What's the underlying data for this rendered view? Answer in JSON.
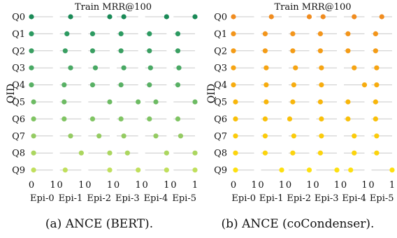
{
  "chart_data": [
    {
      "type": "scatter",
      "title": "Train MRR@100",
      "caption": "(a) ANCE (BERT).",
      "ylabel": "QID",
      "queries": [
        "Q0",
        "Q1",
        "Q2",
        "Q3",
        "Q4",
        "Q5",
        "Q6",
        "Q7",
        "Q8",
        "Q9"
      ],
      "epochs": [
        "Epi-0",
        "Epi-1",
        "Epi-2",
        "Epi-3",
        "Epi-4",
        "Epi-5"
      ],
      "xticks": [
        "0",
        "1"
      ],
      "xlim": [
        0,
        1
      ],
      "grid": true,
      "colors": [
        "#1a8a57",
        "#2c9a61",
        "#3a9f62",
        "#48a863",
        "#58b064",
        "#6dbb63",
        "#80c463",
        "#94cb62",
        "#abd65f",
        "#c0df5c"
      ],
      "values": [
        [
          0.0,
          0.5,
          1.0,
          0.33,
          1.0,
          1.0
        ],
        [
          0.0,
          0.33,
          0.2,
          0.2,
          0.2,
          0.2
        ],
        [
          0.0,
          0.25,
          0.2,
          0.2,
          0.2,
          0.2
        ],
        [
          0.0,
          0.5,
          0.33,
          0.33,
          0.25,
          0.25
        ],
        [
          0.0,
          0.2,
          0.2,
          0.2,
          0.2,
          0.2
        ],
        [
          0.1,
          0.2,
          1.0,
          1.0,
          0.5,
          1.0
        ],
        [
          0.1,
          0.2,
          0.2,
          0.2,
          0.2,
          0.2
        ],
        [
          0.1,
          0.5,
          0.5,
          0.33,
          0.5,
          0.33
        ],
        [
          0.1,
          1.0,
          1.0,
          0.5,
          1.0,
          1.0
        ],
        [
          0.1,
          0.25,
          1.0,
          1.0,
          1.0,
          1.0
        ]
      ]
    },
    {
      "type": "scatter",
      "title": "Train MRR@100",
      "caption": "(b) ANCE (coCondenser).",
      "ylabel": "QID",
      "queries": [
        "Q0",
        "Q1",
        "Q2",
        "Q3",
        "Q4",
        "Q5",
        "Q6",
        "Q7",
        "Q8",
        "Q9"
      ],
      "epochs": [
        "Epi-0",
        "Epi-1",
        "Epi-2",
        "Epi-3",
        "Epi-4",
        "Epi-5"
      ],
      "xticks": [
        "0",
        "1"
      ],
      "xlim": [
        0,
        1
      ],
      "grid": true,
      "colors": [
        "#f08c1f",
        "#f3951b",
        "#f49c16",
        "#f6a412",
        "#f7ac0e",
        "#f8b60b",
        "#f9c00a",
        "#fbcb0b",
        "#fcd40d",
        "#fde010"
      ],
      "values": [
        [
          0.0,
          0.5,
          1.0,
          0.33,
          0.5,
          0.5
        ],
        [
          0.0,
          0.2,
          0.2,
          0.2,
          0.2,
          0.2
        ],
        [
          0.0,
          0.2,
          0.2,
          0.2,
          0.2,
          0.2
        ],
        [
          0.0,
          0.25,
          0.33,
          0.25,
          0.5,
          0.25
        ],
        [
          0.0,
          0.25,
          0.25,
          0.25,
          1.0,
          0.25
        ],
        [
          0.1,
          0.25,
          0.2,
          0.2,
          0.2,
          0.2
        ],
        [
          0.1,
          0.2,
          0.05,
          0.25,
          0.2,
          0.2
        ],
        [
          0.1,
          0.2,
          0.25,
          0.25,
          0.5,
          0.25
        ],
        [
          0.1,
          0.2,
          0.2,
          0.2,
          0.5,
          0.25
        ],
        [
          0.1,
          1.0,
          1.0,
          1.0,
          0.33,
          1.0
        ]
      ]
    }
  ]
}
